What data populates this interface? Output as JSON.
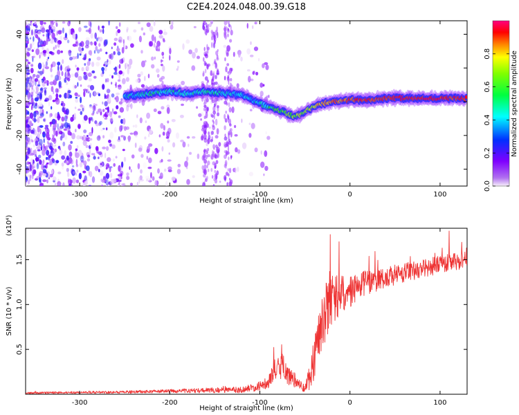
{
  "figure": {
    "title": "C2E4.2024.048.00.39.G18"
  },
  "chart_data": [
    {
      "type": "heatmap",
      "name": "spectrogram",
      "xlabel": "Height of straight line (km)",
      "ylabel": "Frequency (Hz)",
      "xlim": [
        -360,
        130
      ],
      "ylim": [
        -50,
        48
      ],
      "xticks": [
        -300,
        -200,
        -100,
        0,
        100
      ],
      "yticks": [
        -40,
        -20,
        0,
        20,
        40
      ],
      "colorbar": {
        "label": "Normalized spectral amplitude",
        "range": [
          0,
          1
        ],
        "ticks": [
          0.0,
          0.2,
          0.4,
          0.6,
          0.8
        ],
        "colors": [
          "#f7f0fa",
          "#7f00ff",
          "#0040ff",
          "#00ffff",
          "#00ff00",
          "#ffff00",
          "#ff8000",
          "#ff0000",
          "#ff0080"
        ]
      },
      "ridge": {
        "x": [
          -250,
          -220,
          -200,
          -180,
          -160,
          -140,
          -120,
          -100,
          -90,
          -80,
          -70,
          -60,
          -50,
          -40,
          -30,
          -20,
          0,
          20,
          40,
          60,
          80,
          100,
          120,
          130
        ],
        "y": [
          3,
          5,
          6,
          5,
          6,
          5,
          4,
          -1,
          -3,
          -5,
          -7,
          -9,
          -6,
          -3,
          -1,
          0,
          1,
          1,
          2,
          2,
          2,
          2,
          2,
          2
        ],
        "amplitude": [
          0.35,
          0.4,
          0.4,
          0.38,
          0.4,
          0.38,
          0.35,
          0.38,
          0.45,
          0.5,
          0.55,
          0.55,
          0.6,
          0.65,
          0.7,
          0.75,
          0.8,
          0.85,
          0.85,
          0.88,
          0.88,
          0.88,
          0.85,
          0.85
        ]
      },
      "noise_region_x": [
        -360,
        -130
      ]
    },
    {
      "type": "line",
      "name": "snr",
      "xlabel": "Height of straight line (km)",
      "ylabel": "SNR (10 * v/v)",
      "y_multiplier": "(x10⁴)",
      "xlim": [
        -360,
        130
      ],
      "ylim": [
        0,
        18500
      ],
      "xticks": [
        -300,
        -200,
        -100,
        0,
        100
      ],
      "yticks": [
        5000,
        10000,
        15000
      ],
      "ytick_labels": [
        "0.5",
        "1.0",
        "1.5"
      ],
      "series": [
        {
          "color": "#ee3333",
          "x": [
            -360,
            -300,
            -250,
            -200,
            -150,
            -120,
            -100,
            -90,
            -85,
            -80,
            -75,
            -72,
            -68,
            -60,
            -55,
            -50,
            -45,
            -40,
            -35,
            -30,
            -25,
            -20,
            -15,
            -10,
            -5,
            0,
            10,
            20,
            30,
            40,
            50,
            60,
            70,
            80,
            90,
            100,
            110,
            120,
            130
          ],
          "y": [
            150,
            200,
            250,
            350,
            450,
            500,
            900,
            1500,
            2500,
            2800,
            3200,
            2500,
            2000,
            1500,
            1000,
            600,
            2000,
            4000,
            6500,
            8500,
            9500,
            10500,
            10800,
            11000,
            11200,
            11500,
            12000,
            12500,
            12800,
            13000,
            13300,
            13500,
            13800,
            14000,
            14200,
            14500,
            14700,
            14800,
            14900
          ],
          "noise": [
            100,
            120,
            150,
            200,
            300,
            350,
            500,
            800,
            1200,
            1400,
            1600,
            1200,
            1000,
            800,
            600,
            400,
            1500,
            2500,
            3000,
            3200,
            3200,
            3000,
            2500,
            2200,
            2000,
            1800,
            1500,
            1400,
            1300,
            1200,
            1200,
            1100,
            1100,
            1000,
            1000,
            1000,
            1000,
            1000,
            1000
          ],
          "peaks": [
            {
              "x": -22,
              "y": 17800
            },
            {
              "x": -12,
              "y": 17000
            },
            {
              "x": 110,
              "y": 18200
            }
          ]
        }
      ]
    }
  ]
}
